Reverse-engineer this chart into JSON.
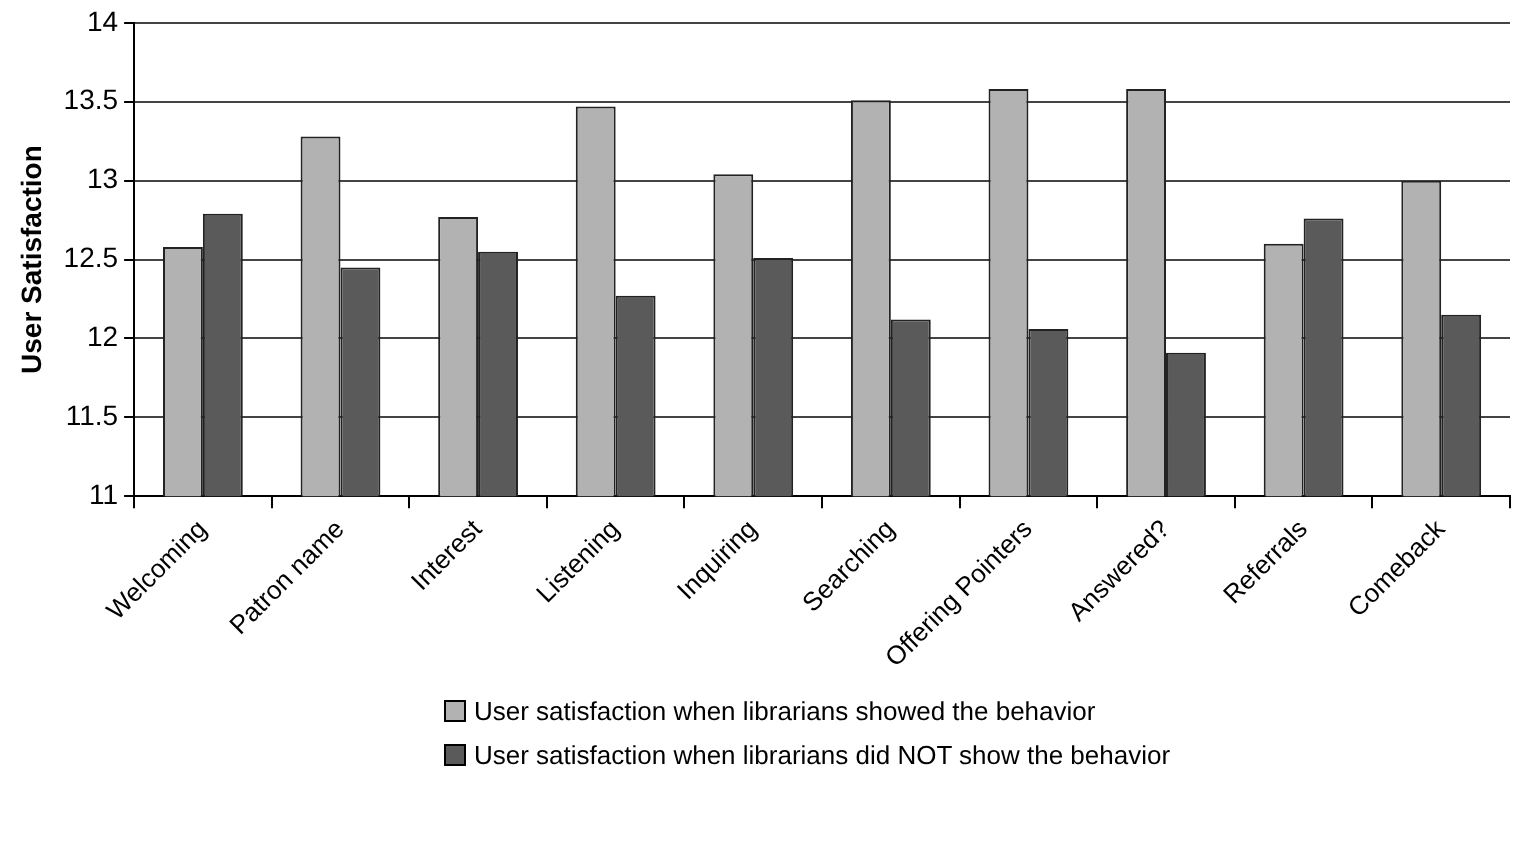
{
  "chart_data": {
    "type": "bar",
    "ylabel": "User Satisfaction",
    "categories": [
      "Welcoming",
      "Patron name",
      "Interest",
      "Listening",
      "Inquiring",
      "Searching",
      "Offering Pointers",
      "Answered?",
      "Referrals",
      "Comeback"
    ],
    "series": [
      {
        "name": "User satisfaction when librarians showed the behavior",
        "color": "#b2b2b2",
        "values": [
          12.58,
          13.28,
          12.77,
          13.47,
          13.04,
          13.51,
          13.58,
          13.58,
          12.6,
          13.0
        ]
      },
      {
        "name": "User satisfaction when librarians did NOT show the behavior",
        "color": "#5a5a5a",
        "values": [
          12.79,
          12.45,
          12.55,
          12.27,
          12.51,
          12.12,
          12.06,
          11.91,
          12.76,
          12.15
        ]
      }
    ],
    "ylim": [
      11,
      14
    ],
    "yticks": [
      11,
      11.5,
      12,
      12.5,
      13,
      13.5,
      14
    ],
    "grid": "y",
    "legend": "bottom"
  }
}
